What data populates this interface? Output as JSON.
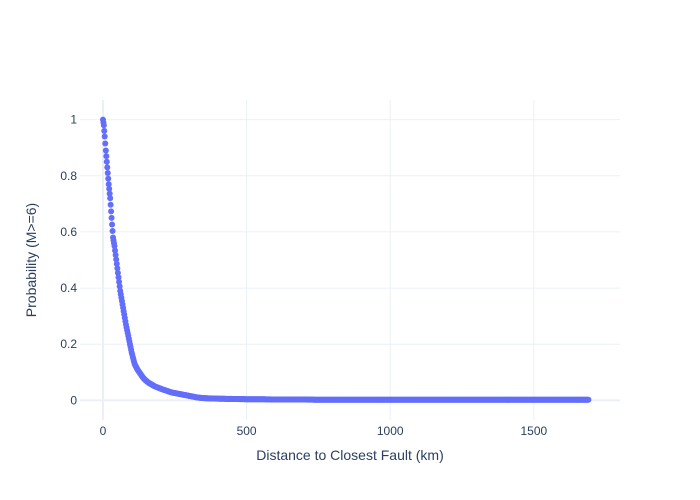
{
  "chart_data": {
    "type": "scatter",
    "title": "",
    "xlabel": "Distance to Closest Fault (km)",
    "ylabel": "Probability (M>=6)",
    "xlim": [
      -80,
      1800
    ],
    "ylim": [
      -0.07,
      1.07
    ],
    "x_ticks": [
      0,
      500,
      1000,
      1500
    ],
    "x_tick_labels": [
      "0",
      "500",
      "1000",
      "1500"
    ],
    "y_ticks": [
      0,
      0.2,
      0.4,
      0.6,
      0.8,
      1
    ],
    "y_tick_labels": [
      "0",
      "0.2",
      "0.4",
      "0.6",
      "0.8",
      "1"
    ],
    "grid": true,
    "marker_color": "#636efa",
    "series": [
      {
        "x": [
          0,
          3,
          6,
          10,
          15,
          20,
          25,
          30,
          35,
          40,
          50,
          60,
          70,
          80,
          90,
          100,
          110,
          120,
          130,
          140,
          150,
          160,
          170,
          180,
          190,
          200,
          210,
          220,
          230,
          240,
          250,
          260,
          270,
          280,
          290,
          300,
          310,
          320,
          330,
          340,
          350,
          370,
          400,
          450,
          500,
          550,
          600,
          650,
          700,
          750,
          800,
          850,
          900,
          950,
          1000,
          1050,
          1100,
          1150,
          1200,
          1250,
          1300,
          1350,
          1400,
          1450,
          1500,
          1550,
          1600,
          1650,
          1690
        ],
        "y": [
          1.0,
          0.98,
          0.94,
          0.89,
          0.83,
          0.77,
          0.72,
          0.65,
          0.58,
          0.55,
          0.47,
          0.39,
          0.33,
          0.27,
          0.22,
          0.17,
          0.13,
          0.11,
          0.095,
          0.08,
          0.07,
          0.062,
          0.056,
          0.05,
          0.046,
          0.042,
          0.038,
          0.035,
          0.031,
          0.028,
          0.026,
          0.024,
          0.022,
          0.02,
          0.018,
          0.016,
          0.014,
          0.012,
          0.01,
          0.009,
          0.008,
          0.007,
          0.006,
          0.005,
          0.004,
          0.004,
          0.003,
          0.003,
          0.003,
          0.002,
          0.002,
          0.002,
          0.002,
          0.002,
          0.002,
          0.002,
          0.002,
          0.002,
          0.002,
          0.002,
          0.002,
          0.002,
          0.002,
          0.002,
          0.002,
          0.002,
          0.002,
          0.002,
          0.002
        ]
      }
    ]
  }
}
